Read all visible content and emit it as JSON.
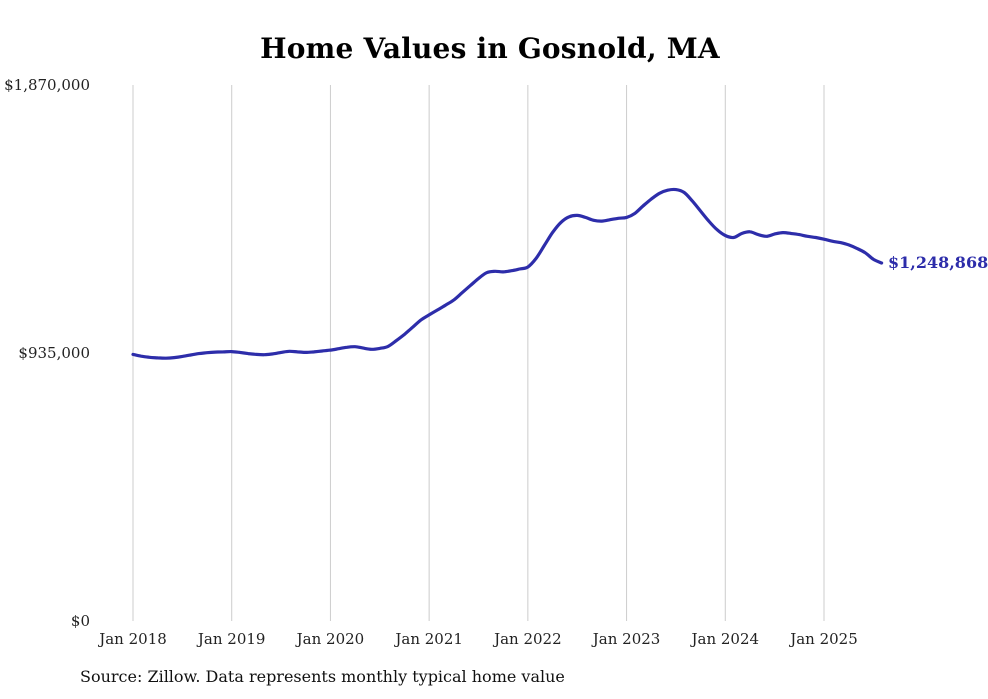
{
  "source": "Source: Zillow. Data represents monthly typical home value",
  "colors": {
    "line": "#2d2daa",
    "grid": "#cccccc",
    "text": "#222222",
    "title": "#000000",
    "background": "#ffffff"
  },
  "chart_data": {
    "type": "line",
    "title": "Home Values in Gosnold, MA",
    "x_unit": "month",
    "x_start": "Jan 2018",
    "x_end": "Aug 2025",
    "x_tick_labels": [
      "Jan 2018",
      "Jan 2019",
      "Jan 2020",
      "Jan 2021",
      "Jan 2022",
      "Jan 2023",
      "Jan 2024",
      "Jan 2025"
    ],
    "y_ticks": [
      {
        "label": "$1,870,000",
        "value": 1870000
      },
      {
        "label": "$935,000",
        "value": 935000
      },
      {
        "label": "$0",
        "value": 0
      }
    ],
    "ylim": [
      0,
      1870000
    ],
    "grid": "vertical-only",
    "legend": "none",
    "final_value_label": "$1,248,868",
    "final_value": 1248868,
    "values": [
      930000,
      924000,
      920000,
      918000,
      917000,
      919000,
      923000,
      928000,
      933000,
      936000,
      938000,
      939000,
      940000,
      937000,
      933000,
      930000,
      929000,
      932000,
      937000,
      941000,
      939000,
      937000,
      939000,
      942000,
      945000,
      950000,
      955000,
      957000,
      952000,
      948000,
      951000,
      958000,
      978000,
      1000000,
      1025000,
      1050000,
      1068000,
      1085000,
      1102000,
      1120000,
      1145000,
      1170000,
      1195000,
      1215000,
      1220000,
      1218000,
      1222000,
      1228000,
      1235000,
      1265000,
      1310000,
      1355000,
      1390000,
      1410000,
      1415000,
      1408000,
      1398000,
      1395000,
      1400000,
      1405000,
      1408000,
      1422000,
      1448000,
      1472000,
      1492000,
      1503000,
      1505000,
      1495000,
      1465000,
      1430000,
      1395000,
      1365000,
      1345000,
      1338000,
      1352000,
      1358000,
      1348000,
      1342000,
      1350000,
      1355000,
      1352000,
      1348000,
      1342000,
      1338000,
      1332000,
      1325000,
      1320000,
      1312000,
      1300000,
      1285000,
      1262000,
      1248868
    ]
  }
}
